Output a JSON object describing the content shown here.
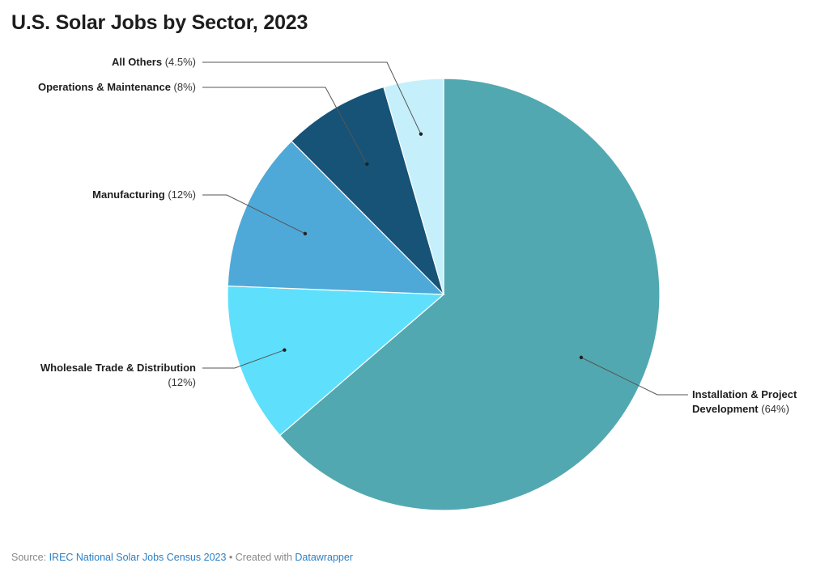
{
  "chart_data": {
    "type": "pie",
    "title": "U.S. Solar Jobs by Sector, 2023",
    "slices": [
      {
        "name": "Installation & Project Development",
        "value": 64,
        "label_lines": [
          "Installation & Project",
          "Development"
        ],
        "pct_text": "(64%)",
        "color": "#52a8b0"
      },
      {
        "name": "Wholesale Trade & Distribution",
        "value": 12,
        "label_lines": [
          "Wholesale Trade & Distribution"
        ],
        "pct_text": "(12%)",
        "color": "#5ee0fc"
      },
      {
        "name": "Manufacturing",
        "value": 12,
        "label_lines": [
          "Manufacturing"
        ],
        "pct_text": "(12%)",
        "color": "#4fa9d8"
      },
      {
        "name": "Operations & Maintenance",
        "value": 8,
        "label_lines": [
          "Operations & Maintenance"
        ],
        "pct_text": "(8%)",
        "color": "#165377"
      },
      {
        "name": "All Others",
        "value": 4.5,
        "label_lines": [
          "All Others"
        ],
        "pct_text": "(4.5%)",
        "color": "#c5f0fb"
      }
    ]
  },
  "footer": {
    "source_prefix": "Source: ",
    "source_link": "IREC National Solar Jobs Census 2023",
    "separator": " • Created with ",
    "tool_link": "Datawrapper"
  }
}
